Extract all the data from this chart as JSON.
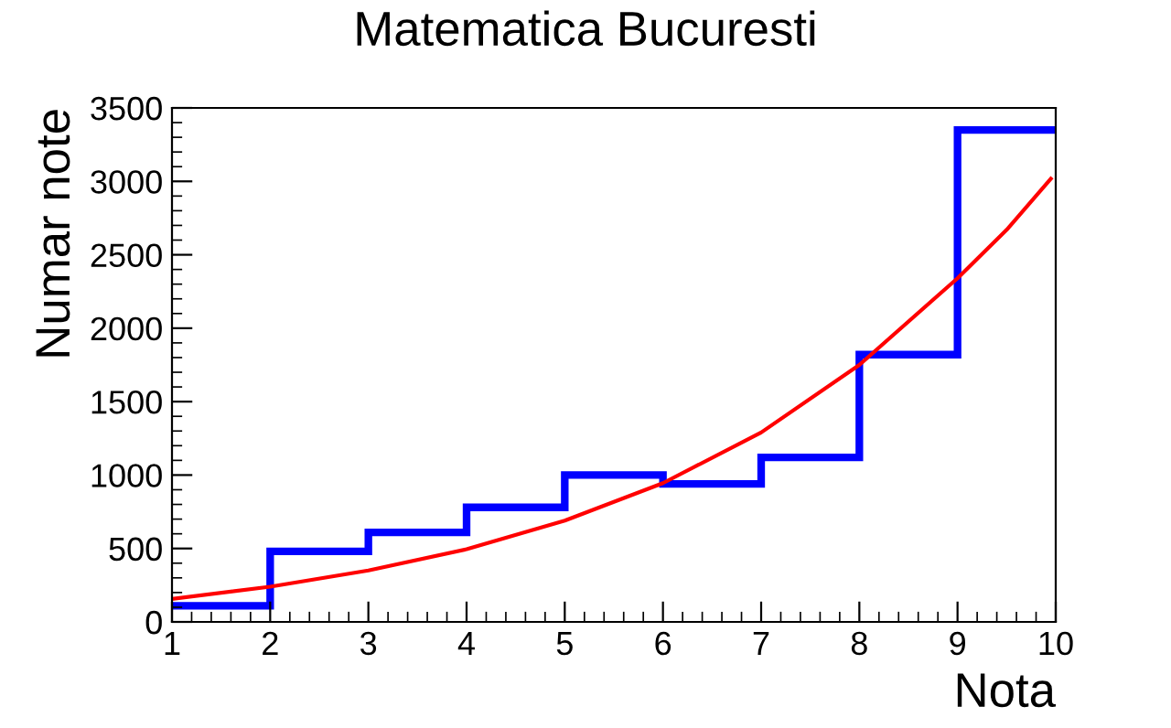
{
  "chart_data": {
    "type": "histogram",
    "title": "Matematica Bucuresti",
    "xlabel": "Nota",
    "ylabel": "Numar note",
    "bins": [
      1,
      2,
      3,
      4,
      5,
      6,
      7,
      8,
      9,
      10
    ],
    "values": [
      110,
      480,
      610,
      780,
      1000,
      940,
      1120,
      1820,
      3350
    ],
    "color": "#0000ff",
    "series": [
      {
        "type": "line",
        "color": "#ff0000",
        "x": [
          1,
          2,
          3,
          4,
          5,
          6,
          7,
          8,
          9,
          9.5,
          9.95
        ],
        "values": [
          157,
          240,
          350,
          495,
          690,
          945,
          1290,
          1750,
          2340,
          2670,
          3017
        ]
      }
    ],
    "xlim": [
      1,
      10
    ],
    "ylim": [
      0,
      3500
    ],
    "xticks": [
      1,
      2,
      3,
      4,
      5,
      6,
      7,
      8,
      9,
      10
    ],
    "yticks": [
      0,
      500,
      1000,
      1500,
      2000,
      2500,
      3000,
      3500
    ],
    "grid": false,
    "legend": false
  }
}
